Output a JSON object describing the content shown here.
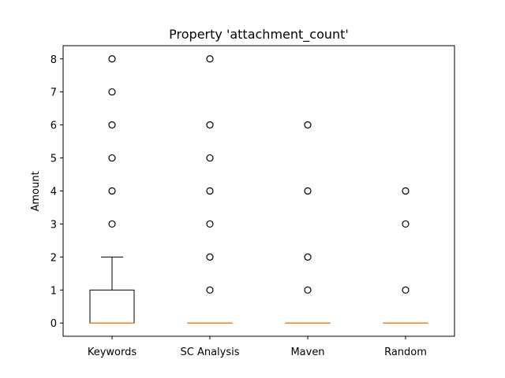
{
  "chart_data": {
    "type": "box",
    "title": "Property 'attachment_count'",
    "xlabel": "",
    "ylabel": "Amount",
    "ylim": [
      -0.4,
      8.4
    ],
    "yticks": [
      0,
      1,
      2,
      3,
      4,
      5,
      6,
      7,
      8
    ],
    "grid": false,
    "categories": [
      "Keywords",
      "SC Analysis",
      "Maven",
      "Random"
    ],
    "boxes": [
      {
        "name": "Keywords",
        "whisker_low": 0,
        "q1": 0,
        "median": 0,
        "q3": 1,
        "whisker_high": 2,
        "outliers": [
          3,
          4,
          5,
          6,
          7,
          8
        ]
      },
      {
        "name": "SC Analysis",
        "whisker_low": 0,
        "q1": 0,
        "median": 0,
        "q3": 0,
        "whisker_high": 0,
        "outliers": [
          1,
          2,
          3,
          4,
          5,
          6,
          8
        ]
      },
      {
        "name": "Maven",
        "whisker_low": 0,
        "q1": 0,
        "median": 0,
        "q3": 0,
        "whisker_high": 0,
        "outliers": [
          1,
          2,
          4,
          6
        ]
      },
      {
        "name": "Random",
        "whisker_low": 0,
        "q1": 0,
        "median": 0,
        "q3": 0,
        "whisker_high": 0,
        "outliers": [
          1,
          3,
          4
        ]
      }
    ],
    "colors": {
      "box": "#000000",
      "median": "#ff7f0e",
      "flier": "#000000"
    }
  }
}
